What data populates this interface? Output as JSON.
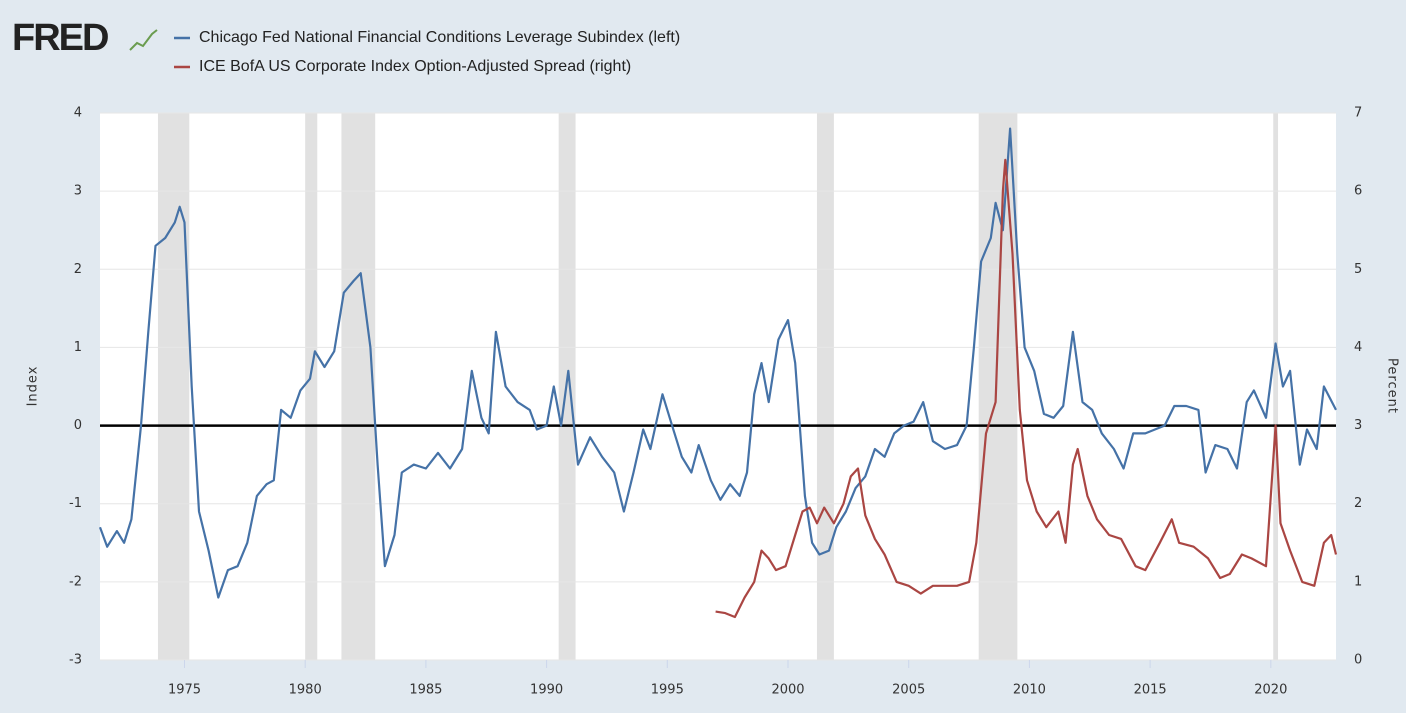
{
  "chart_data": {
    "type": "line",
    "logo": "FRED",
    "y_label": "Index",
    "y2_label": "Percent",
    "xlim": [
      1971.5,
      2022.7
    ],
    "xticks": [
      1975,
      1980,
      1985,
      1990,
      1995,
      2000,
      2005,
      2010,
      2015,
      2020
    ],
    "ylim": [
      -3,
      4
    ],
    "yticks": [
      -3,
      -2,
      -1,
      0,
      1,
      2,
      3,
      4
    ],
    "y2lim": [
      0,
      7
    ],
    "y2ticks": [
      0,
      1,
      2,
      3,
      4,
      5,
      6,
      7
    ],
    "grid": true,
    "reference_line": 0,
    "shaded_periods": [
      [
        1973.9,
        1975.2
      ],
      [
        1980.0,
        1980.5
      ],
      [
        1981.5,
        1982.9
      ],
      [
        1990.5,
        1991.2
      ],
      [
        2001.2,
        2001.9
      ],
      [
        2007.9,
        2009.5
      ],
      [
        2020.1,
        2020.3
      ]
    ],
    "series": [
      {
        "name": "Chicago Fed National Financial Conditions Leverage Subindex (left)",
        "color": "#4572a7",
        "axis": "y",
        "x": [
          1971.5,
          1971.8,
          1972.2,
          1972.5,
          1972.8,
          1973.2,
          1973.5,
          1973.8,
          1974.2,
          1974.6,
          1974.8,
          1975.0,
          1975.3,
          1975.6,
          1976.0,
          1976.4,
          1976.8,
          1977.2,
          1977.6,
          1978.0,
          1978.4,
          1978.7,
          1979.0,
          1979.4,
          1979.8,
          1980.2,
          1980.4,
          1980.8,
          1981.2,
          1981.6,
          1982.0,
          1982.3,
          1982.7,
          1983.0,
          1983.3,
          1983.7,
          1984.0,
          1984.5,
          1985.0,
          1985.5,
          1986.0,
          1986.5,
          1986.9,
          1987.3,
          1987.6,
          1987.9,
          1988.3,
          1988.8,
          1989.3,
          1989.6,
          1990.0,
          1990.3,
          1990.6,
          1990.9,
          1991.3,
          1991.8,
          1992.3,
          1992.8,
          1993.2,
          1993.6,
          1994.0,
          1994.3,
          1994.8,
          1995.2,
          1995.6,
          1996.0,
          1996.3,
          1996.8,
          1997.2,
          1997.6,
          1998.0,
          1998.3,
          1998.6,
          1998.9,
          1999.2,
          1999.6,
          2000.0,
          2000.3,
          2000.7,
          2001.0,
          2001.3,
          2001.7,
          2002.0,
          2002.4,
          2002.8,
          2003.2,
          2003.6,
          2004.0,
          2004.4,
          2004.8,
          2005.2,
          2005.6,
          2006.0,
          2006.5,
          2007.0,
          2007.4,
          2007.7,
          2008.0,
          2008.4,
          2008.6,
          2008.9,
          2009.2,
          2009.5,
          2009.8,
          2010.2,
          2010.6,
          2011.0,
          2011.4,
          2011.8,
          2012.2,
          2012.6,
          2013.0,
          2013.5,
          2013.9,
          2014.3,
          2014.8,
          2015.2,
          2015.6,
          2016.0,
          2016.5,
          2017.0,
          2017.3,
          2017.7,
          2018.2,
          2018.6,
          2019.0,
          2019.3,
          2019.8,
          2020.2,
          2020.5,
          2020.8,
          2021.2,
          2021.5,
          2021.9,
          2022.2,
          2022.7
        ],
        "values": [
          -1.3,
          -1.55,
          -1.35,
          -1.5,
          -1.2,
          0.0,
          1.2,
          2.3,
          2.4,
          2.6,
          2.8,
          2.6,
          0.5,
          -1.1,
          -1.6,
          -2.2,
          -1.85,
          -1.8,
          -1.5,
          -0.9,
          -0.75,
          -0.7,
          0.2,
          0.1,
          0.45,
          0.6,
          0.95,
          0.75,
          0.95,
          1.7,
          1.85,
          1.95,
          1.0,
          -0.5,
          -1.8,
          -1.4,
          -0.6,
          -0.5,
          -0.55,
          -0.35,
          -0.55,
          -0.3,
          0.7,
          0.1,
          -0.1,
          1.2,
          0.5,
          0.3,
          0.2,
          -0.05,
          0.0,
          0.5,
          0.0,
          0.7,
          -0.5,
          -0.15,
          -0.4,
          -0.6,
          -1.1,
          -0.6,
          -0.05,
          -0.3,
          0.4,
          0.0,
          -0.4,
          -0.6,
          -0.25,
          -0.7,
          -0.95,
          -0.75,
          -0.9,
          -0.6,
          0.4,
          0.8,
          0.3,
          1.1,
          1.35,
          0.8,
          -0.9,
          -1.5,
          -1.65,
          -1.6,
          -1.3,
          -1.1,
          -0.8,
          -0.65,
          -0.3,
          -0.4,
          -0.1,
          0.0,
          0.05,
          0.3,
          -0.2,
          -0.3,
          -0.25,
          0.0,
          1.0,
          2.1,
          2.4,
          2.85,
          2.5,
          3.8,
          2.2,
          1.0,
          0.7,
          0.15,
          0.1,
          0.25,
          1.2,
          0.3,
          0.2,
          -0.1,
          -0.3,
          -0.55,
          -0.1,
          -0.1,
          -0.05,
          0.0,
          0.25,
          0.25,
          0.2,
          -0.6,
          -0.25,
          -0.3,
          -0.55,
          0.3,
          0.45,
          0.1,
          1.05,
          0.5,
          0.7,
          -0.5,
          -0.05,
          -0.3,
          0.5,
          0.2
        ]
      },
      {
        "name": "ICE BofA US Corporate Index Option-Adjusted Spread (right)",
        "color": "#aa4643",
        "axis": "y2",
        "x": [
          1997.0,
          1997.4,
          1997.8,
          1998.2,
          1998.6,
          1998.9,
          1999.2,
          1999.5,
          1999.9,
          2000.3,
          2000.6,
          2000.9,
          2001.2,
          2001.5,
          2001.9,
          2002.3,
          2002.6,
          2002.9,
          2003.2,
          2003.6,
          2004.0,
          2004.5,
          2005.0,
          2005.5,
          2006.0,
          2006.5,
          2007.0,
          2007.5,
          2007.8,
          2008.2,
          2008.6,
          2008.9,
          2009.0,
          2009.3,
          2009.6,
          2009.9,
          2010.3,
          2010.7,
          2011.2,
          2011.5,
          2011.8,
          2012.0,
          2012.4,
          2012.8,
          2013.3,
          2013.8,
          2014.4,
          2014.8,
          2015.4,
          2015.9,
          2016.2,
          2016.8,
          2017.4,
          2017.9,
          2018.3,
          2018.8,
          2019.2,
          2019.8,
          2020.2,
          2020.4,
          2020.8,
          2021.3,
          2021.8,
          2022.2,
          2022.5,
          2022.7
        ],
        "values": [
          0.62,
          0.6,
          0.55,
          0.8,
          1.0,
          1.4,
          1.3,
          1.15,
          1.2,
          1.6,
          1.9,
          1.95,
          1.75,
          1.95,
          1.75,
          2.0,
          2.35,
          2.45,
          1.85,
          1.55,
          1.35,
          1.0,
          0.95,
          0.85,
          0.95,
          0.95,
          0.95,
          1.0,
          1.5,
          2.9,
          3.3,
          6.0,
          6.4,
          5.2,
          3.2,
          2.3,
          1.9,
          1.7,
          1.9,
          1.5,
          2.5,
          2.7,
          2.1,
          1.8,
          1.6,
          1.55,
          1.2,
          1.15,
          1.5,
          1.8,
          1.5,
          1.45,
          1.3,
          1.05,
          1.1,
          1.35,
          1.3,
          1.2,
          3.0,
          1.75,
          1.4,
          1.0,
          0.95,
          1.5,
          1.6,
          1.35
        ]
      }
    ]
  }
}
